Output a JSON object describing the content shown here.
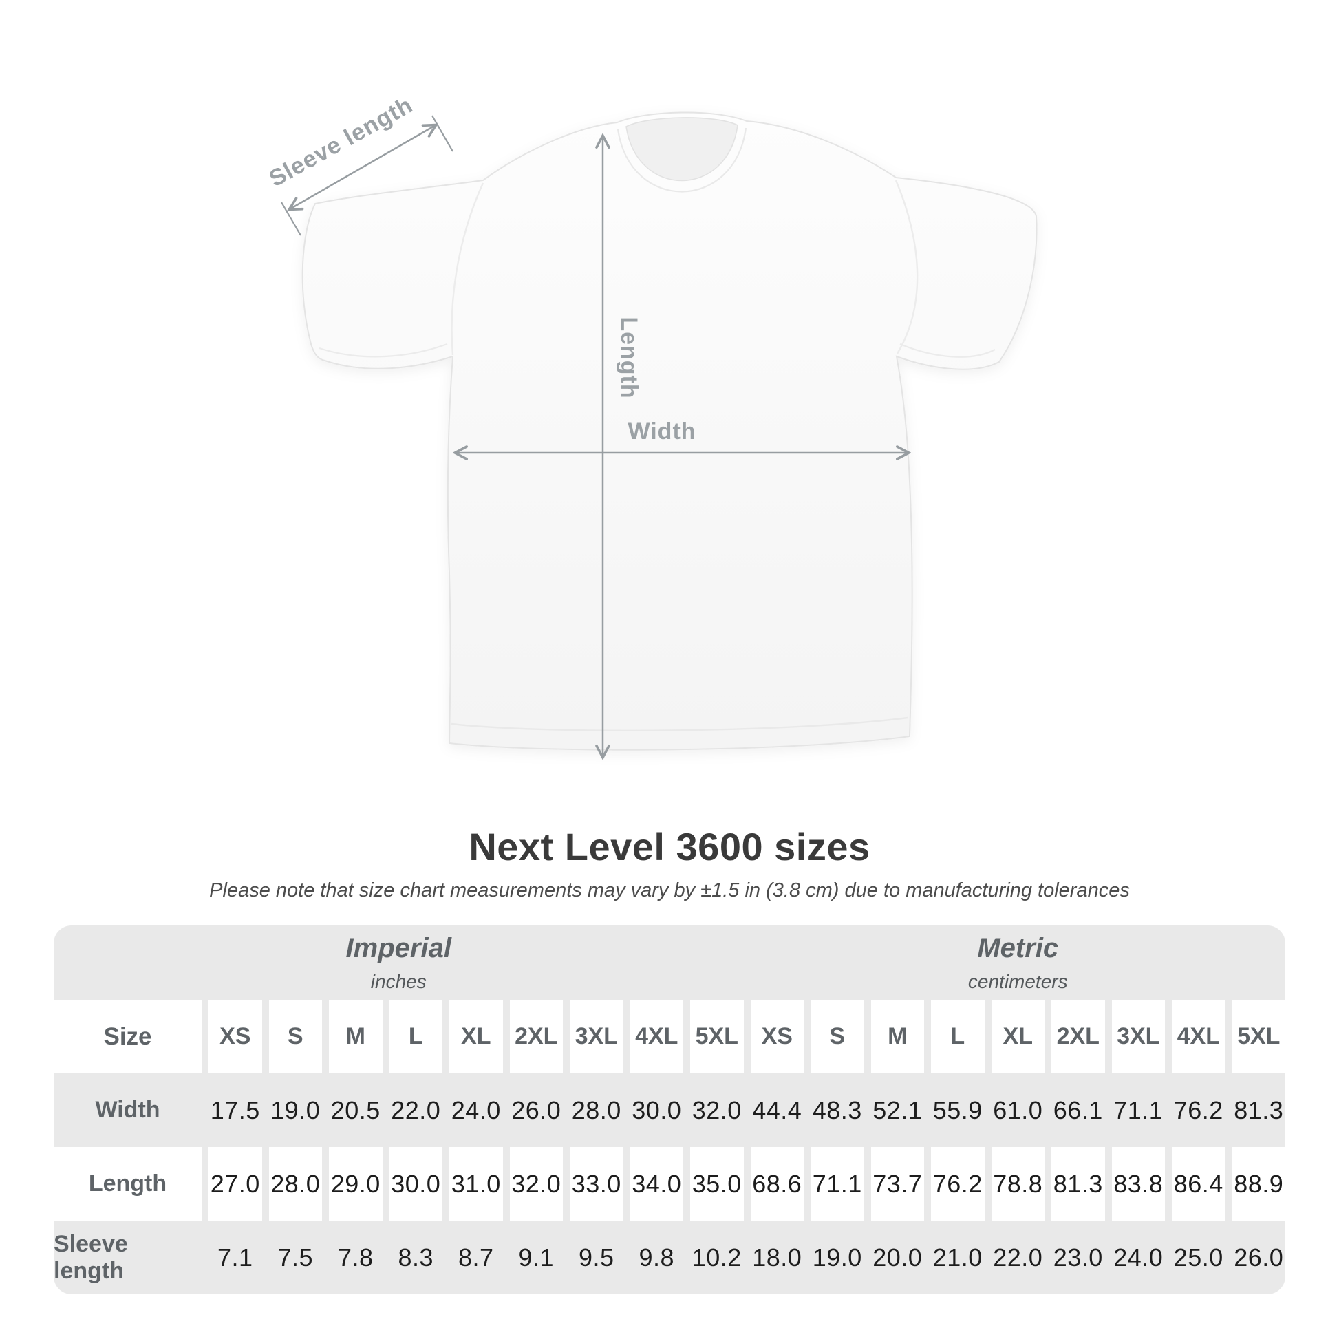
{
  "diagram": {
    "labels": {
      "sleeve": "Sleeve length",
      "length": "Length",
      "width": "Width"
    },
    "arrow_color": "#979da1",
    "label_color": "#9ba1a5"
  },
  "title": "Next Level 3600 sizes",
  "subtitle": "Please note that size chart measurements may vary by ±1.5 in (3.8 cm) due to manufacturing tolerances",
  "table": {
    "unit_groups": [
      {
        "name": "Imperial",
        "unit": "inches"
      },
      {
        "name": "Metric",
        "unit": "centimeters"
      }
    ],
    "size_header_label": "Size",
    "sizes": [
      "XS",
      "S",
      "M",
      "L",
      "XL",
      "2XL",
      "3XL",
      "4XL",
      "5XL"
    ],
    "rows": [
      {
        "label": "Width",
        "imperial": [
          "17.5",
          "19.0",
          "20.5",
          "22.0",
          "24.0",
          "26.0",
          "28.0",
          "30.0",
          "32.0"
        ],
        "metric": [
          "44.4",
          "48.3",
          "52.1",
          "55.9",
          "61.0",
          "66.1",
          "71.1",
          "76.2",
          "81.3"
        ]
      },
      {
        "label": "Length",
        "imperial": [
          "27.0",
          "28.0",
          "29.0",
          "30.0",
          "31.0",
          "32.0",
          "33.0",
          "34.0",
          "35.0"
        ],
        "metric": [
          "68.6",
          "71.1",
          "73.7",
          "76.2",
          "78.8",
          "81.3",
          "83.8",
          "86.4",
          "88.9"
        ]
      },
      {
        "label": "Sleeve length",
        "imperial": [
          "7.1",
          "7.5",
          "7.8",
          "8.3",
          "8.7",
          "9.1",
          "9.5",
          "9.8",
          "10.2"
        ],
        "metric": [
          "18.0",
          "19.0",
          "20.0",
          "21.0",
          "22.0",
          "23.0",
          "24.0",
          "25.0",
          "26.0"
        ]
      }
    ],
    "colors": {
      "container_bg": "#e9e9e9",
      "white_row": "#ffffff"
    }
  }
}
